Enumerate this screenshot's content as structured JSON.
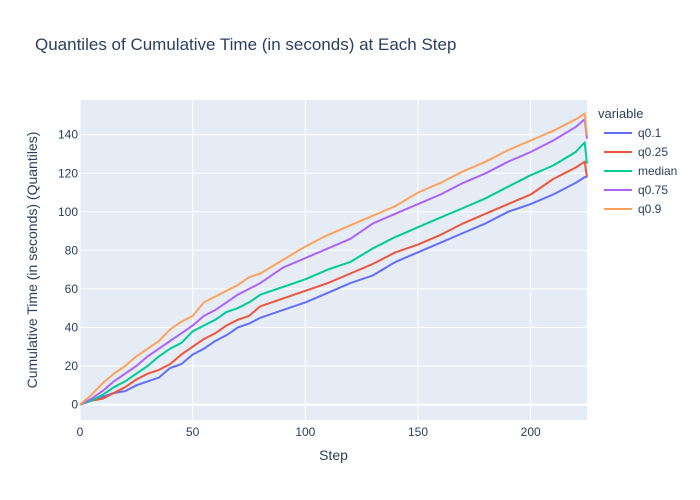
{
  "chart_data": {
    "type": "line",
    "title": "Quantiles of Cumulative Time (in seconds) at Each Step",
    "xlabel": "Step",
    "ylabel": "Cumulative Time (in seconds) (Quantiles)",
    "xlim": [
      0,
      225
    ],
    "ylim": [
      -8,
      158
    ],
    "x_ticks": [
      0,
      50,
      100,
      150,
      200
    ],
    "y_ticks": [
      0,
      20,
      40,
      60,
      80,
      100,
      120,
      140
    ],
    "grid": true,
    "legend": {
      "title": "variable",
      "placement": "right"
    },
    "series": [
      {
        "name": "q0.1",
        "color": "#636efa",
        "x": [
          0,
          5,
          10,
          15,
          20,
          25,
          30,
          35,
          40,
          45,
          50,
          55,
          60,
          65,
          70,
          75,
          80,
          90,
          100,
          110,
          120,
          130,
          140,
          150,
          160,
          170,
          180,
          190,
          200,
          210,
          220,
          224,
          225
        ],
        "y": [
          0,
          2,
          4,
          6,
          7,
          10,
          12,
          14,
          19,
          21,
          26,
          29,
          33,
          36,
          40,
          42,
          45,
          49,
          53,
          58,
          63,
          67,
          74,
          79,
          84,
          89,
          94,
          100,
          104,
          109,
          115,
          118,
          118
        ]
      },
      {
        "name": "q0.25",
        "color": "#ef553b",
        "x": [
          0,
          5,
          10,
          15,
          20,
          25,
          30,
          35,
          40,
          45,
          50,
          55,
          60,
          65,
          70,
          75,
          80,
          90,
          100,
          110,
          120,
          130,
          140,
          150,
          160,
          170,
          180,
          190,
          200,
          210,
          220,
          224,
          225
        ],
        "y": [
          0,
          2,
          3,
          6,
          9,
          13,
          16,
          18,
          21,
          26,
          30,
          34,
          37,
          41,
          44,
          46,
          51,
          55,
          59,
          63,
          68,
          73,
          79,
          83,
          88,
          94,
          99,
          104,
          109,
          117,
          123,
          126,
          118
        ]
      },
      {
        "name": "median",
        "color": "#00cc96",
        "x": [
          0,
          5,
          10,
          15,
          20,
          25,
          30,
          35,
          40,
          45,
          50,
          55,
          60,
          65,
          70,
          75,
          80,
          90,
          100,
          110,
          120,
          130,
          140,
          150,
          160,
          170,
          180,
          190,
          200,
          210,
          220,
          224,
          225
        ],
        "y": [
          0,
          2,
          5,
          9,
          12,
          16,
          20,
          25,
          29,
          32,
          38,
          41,
          44,
          48,
          50,
          53,
          57,
          61,
          65,
          70,
          74,
          81,
          87,
          92,
          97,
          102,
          107,
          113,
          119,
          124,
          131,
          136,
          125
        ]
      },
      {
        "name": "q0.75",
        "color": "#ab63fa",
        "x": [
          0,
          5,
          10,
          15,
          20,
          25,
          30,
          35,
          40,
          45,
          50,
          55,
          60,
          65,
          70,
          75,
          80,
          90,
          100,
          110,
          120,
          130,
          140,
          150,
          160,
          170,
          180,
          190,
          200,
          210,
          220,
          224,
          225
        ],
        "y": [
          0,
          3,
          7,
          12,
          16,
          20,
          25,
          29,
          33,
          37,
          41,
          46,
          49,
          53,
          57,
          60,
          63,
          71,
          76,
          81,
          86,
          94,
          99,
          104,
          109,
          115,
          120,
          126,
          131,
          137,
          144,
          148,
          138
        ]
      },
      {
        "name": "q0.9",
        "color": "#ffa15a",
        "x": [
          0,
          5,
          10,
          15,
          20,
          25,
          30,
          35,
          40,
          45,
          50,
          55,
          60,
          65,
          70,
          75,
          80,
          90,
          100,
          110,
          120,
          130,
          140,
          150,
          160,
          170,
          180,
          190,
          200,
          210,
          220,
          224,
          225
        ],
        "y": [
          0,
          5,
          11,
          16,
          20,
          25,
          29,
          33,
          39,
          43,
          46,
          53,
          56,
          59,
          62,
          66,
          68,
          75,
          82,
          88,
          93,
          98,
          103,
          110,
          115,
          121,
          126,
          132,
          137,
          142,
          148,
          151,
          140
        ]
      }
    ]
  }
}
